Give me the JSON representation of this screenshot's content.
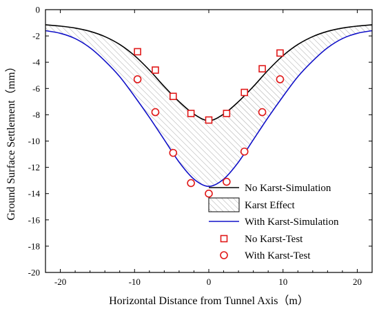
{
  "chart_data": {
    "type": "line",
    "xlabel": "Horizontal Distance from Tunnel Axis（m）",
    "ylabel": "Ground Surface Settlement（mm）",
    "xlim": [
      -22,
      22
    ],
    "ylim": [
      -20,
      0
    ],
    "xticks": [
      -20,
      -10,
      0,
      10,
      20
    ],
    "yticks": [
      0,
      -2,
      -4,
      -6,
      -8,
      -10,
      -12,
      -14,
      -16,
      -18,
      -20
    ],
    "grid": false,
    "legend_position": "bottom-right",
    "colors": {
      "no_karst_line": "#000000",
      "with_karst_line": "#1010c8",
      "markers": "#e01818",
      "hatch": "#9a9a9a"
    },
    "series": [
      {
        "name": "No Karst-Simulation",
        "kind": "line",
        "x": [
          -22,
          -20,
          -18,
          -16,
          -14,
          -12,
          -10,
          -8,
          -6,
          -4,
          -2,
          0,
          2,
          4,
          6,
          8,
          10,
          12,
          14,
          16,
          18,
          20,
          22
        ],
        "y": [
          -1.15,
          -1.25,
          -1.4,
          -1.65,
          -2.05,
          -2.65,
          -3.5,
          -4.6,
          -5.85,
          -7.0,
          -7.95,
          -8.45,
          -7.95,
          -7.0,
          -5.85,
          -4.6,
          -3.5,
          -2.65,
          -2.05,
          -1.65,
          -1.4,
          -1.25,
          -1.15
        ]
      },
      {
        "name": "With Karst-Simulation",
        "kind": "line",
        "x": [
          -22,
          -20,
          -18,
          -16,
          -14,
          -12,
          -10,
          -8,
          -6,
          -4,
          -2,
          0,
          2,
          4,
          6,
          8,
          10,
          12,
          14,
          16,
          18,
          20,
          22
        ],
        "y": [
          -1.6,
          -1.8,
          -2.2,
          -2.9,
          -3.9,
          -5.1,
          -6.6,
          -8.2,
          -9.9,
          -11.6,
          -12.9,
          -13.45,
          -12.9,
          -11.6,
          -9.9,
          -8.2,
          -6.6,
          -5.1,
          -3.9,
          -2.9,
          -2.2,
          -1.8,
          -1.6
        ]
      },
      {
        "name": "No Karst-Test",
        "kind": "square",
        "x": [
          -9.6,
          -7.2,
          -4.8,
          -2.4,
          0,
          2.4,
          4.8,
          7.2,
          9.6
        ],
        "y": [
          -3.2,
          -4.6,
          -6.6,
          -7.9,
          -8.4,
          -7.9,
          -6.3,
          -4.5,
          -3.3
        ]
      },
      {
        "name": "With Karst-Test",
        "kind": "circle",
        "x": [
          -9.6,
          -7.2,
          -4.8,
          -2.4,
          0,
          2.4,
          4.8,
          7.2,
          9.6
        ],
        "y": [
          -5.3,
          -7.8,
          -10.9,
          -13.2,
          -14.0,
          -13.1,
          -10.8,
          -7.8,
          -5.3
        ]
      },
      {
        "name": "Karst Effect",
        "kind": "hatched-area"
      }
    ],
    "legend": [
      {
        "label": "No Karst-Simulation",
        "symbol": "line-black"
      },
      {
        "label": "Karst Effect",
        "symbol": "hatch"
      },
      {
        "label": "With Karst-Simulation",
        "symbol": "line-blue"
      },
      {
        "label": "No Karst-Test",
        "symbol": "square"
      },
      {
        "label": "With Karst-Test",
        "symbol": "circle"
      }
    ]
  }
}
